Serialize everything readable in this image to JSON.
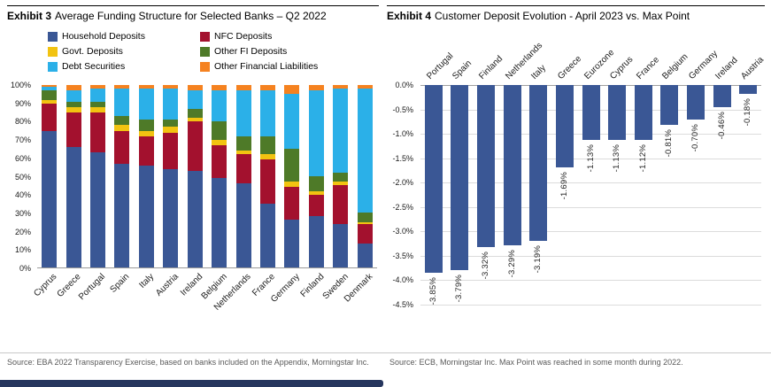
{
  "page": {
    "exhibit3_label": "Exhibit 3",
    "exhibit3_title": "Average Funding Structure for Selected Banks – Q2 2022",
    "exhibit4_label": "Exhibit 4",
    "exhibit4_title": "Customer Deposit Evolution - April 2023 vs. Max Point",
    "source_left": "Source: EBA 2022 Transparency Exercise, based on banks included on the Appendix, Morningstar Inc.",
    "source_right": "Source: ECB, Morningstar Inc. Max Point was reached in some month during 2022."
  },
  "chart_data": [
    {
      "type": "bar",
      "subtype": "stacked-100-percent",
      "exhibit": "Exhibit 3",
      "title": "Average Funding Structure for Selected Banks – Q2 2022",
      "legend_position": "top",
      "grid": false,
      "ylim": [
        0,
        100
      ],
      "yticks": [
        "100%",
        "90%",
        "80%",
        "70%",
        "60%",
        "50%",
        "40%",
        "30%",
        "20%",
        "10%",
        "0%"
      ],
      "categories": [
        "Cyprus",
        "Greece",
        "Portugal",
        "Spain",
        "Italy",
        "Austria",
        "Ireland",
        "Belgium",
        "Netherlands",
        "France",
        "Germany",
        "Finland",
        "Sweden",
        "Denmark"
      ],
      "series": [
        {
          "name": "Household Deposits",
          "color": "#3A5795",
          "values": [
            75,
            66,
            63,
            57,
            56,
            54,
            53,
            49,
            46,
            35,
            26,
            28,
            24,
            13
          ]
        },
        {
          "name": "NFC Deposits",
          "color": "#A3112E",
          "values": [
            15,
            19,
            22,
            18,
            16,
            20,
            27,
            18,
            16,
            24,
            18,
            12,
            21,
            11
          ]
        },
        {
          "name": "Govt. Deposits",
          "color": "#F2C311",
          "values": [
            2,
            3,
            3,
            3,
            3,
            3,
            2,
            3,
            2,
            3,
            3,
            2,
            2,
            1
          ]
        },
        {
          "name": "Other FI Deposits",
          "color": "#4E7A28",
          "values": [
            5,
            3,
            3,
            5,
            6,
            4,
            5,
            10,
            8,
            10,
            18,
            8,
            5,
            5
          ]
        },
        {
          "name": "Debt Securities",
          "color": "#2BB0E8",
          "values": [
            2,
            6,
            7,
            15,
            17,
            17,
            10,
            17,
            25,
            25,
            30,
            47,
            46,
            68
          ]
        },
        {
          "name": "Other Financial Liabilities",
          "color": "#F58220",
          "values": [
            1,
            3,
            2,
            2,
            2,
            2,
            3,
            3,
            3,
            3,
            5,
            3,
            2,
            2
          ]
        }
      ]
    },
    {
      "type": "bar",
      "exhibit": "Exhibit 4",
      "title": "Customer Deposit Evolution - April 2023 vs. Max Point",
      "bar_color": "#3A5795",
      "grid": true,
      "ylim": [
        -4.5,
        0
      ],
      "yticks": [
        "0.0%",
        "-0.5%",
        "-1.0%",
        "-1.5%",
        "-2.0%",
        "-2.5%",
        "-3.0%",
        "-3.5%",
        "-4.0%",
        "-4.5%"
      ],
      "categories": [
        "Portugal",
        "Spain",
        "Finland",
        "Netherlands",
        "Italy",
        "Greece",
        "Eurozone",
        "Cyprus",
        "France",
        "Belgium",
        "Germany",
        "Ireland",
        "Austria"
      ],
      "values": [
        -3.85,
        -3.79,
        -3.32,
        -3.29,
        -3.19,
        -1.69,
        -1.13,
        -1.13,
        -1.12,
        -0.81,
        -0.7,
        -0.46,
        -0.18
      ],
      "labels": [
        "-3.85%",
        "-3.79%",
        "-3.32%",
        "-3.29%",
        "-3.19%",
        "-1.69%",
        "-1.13%",
        "-1.13%",
        "-1.12%",
        "-0.81%",
        "-0.70%",
        "-0.46%",
        "-0.18%"
      ]
    }
  ]
}
